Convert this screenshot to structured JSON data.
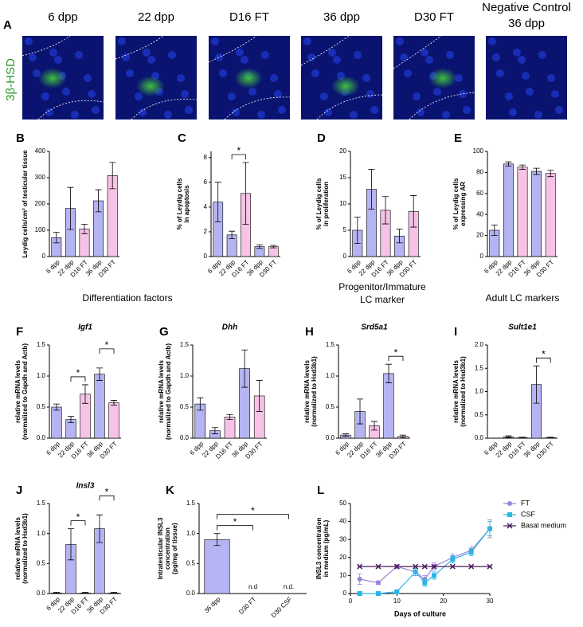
{
  "panel_a": {
    "letter": "A",
    "stain": "3β-HSD",
    "images": [
      [
        "6 dpp"
      ],
      [
        "22 dpp"
      ],
      [
        "D16 FT"
      ],
      [
        "36 dpp"
      ],
      [
        "D30 FT"
      ],
      [
        "Negative Control",
        "36 dpp"
      ]
    ]
  },
  "section_headers": [
    "Differentiation factors",
    [
      "Progenitor/Immature",
      "LC marker"
    ],
    "Adult LC markers"
  ],
  "chart_data": [
    {
      "type": "bar",
      "panel": "B",
      "ylabel": [
        "Leydig cells/cm² of testicular tissue"
      ],
      "categories": [
        "6 dpp",
        "22 dpp",
        "D16 FT",
        "36 dpp",
        "D30 FT"
      ],
      "values": [
        72,
        183,
        105,
        212,
        308
      ],
      "errors": [
        20,
        80,
        18,
        42,
        50
      ],
      "colors": [
        "#b4b4f2",
        "#b4b4f2",
        "#f6c2e6",
        "#b4b4f2",
        "#f6c2e6"
      ],
      "ylim": [
        0,
        400
      ],
      "yticks": [
        0,
        100,
        200,
        300,
        400
      ]
    },
    {
      "type": "bar",
      "panel": "C",
      "ylabel": [
        "% of Leydig cells",
        "in apoptosis"
      ],
      "categories": [
        "6 dpp",
        "22 dpp",
        "D16 FT",
        "36 dpp",
        "D30 FT"
      ],
      "values": [
        4.4,
        1.75,
        5.1,
        0.8,
        0.8
      ],
      "errors": [
        1.6,
        0.3,
        2.5,
        0.15,
        0.1
      ],
      "colors": [
        "#b4b4f2",
        "#b4b4f2",
        "#f6c2e6",
        "#b4b4f2",
        "#f6c2e6"
      ],
      "ylim": [
        0,
        8.5
      ],
      "yticks": [
        0,
        2,
        4,
        6,
        8
      ],
      "significance": [
        {
          "label": "*",
          "between": [
            "22 dpp",
            "D16 FT"
          ]
        }
      ]
    },
    {
      "type": "bar",
      "panel": "D",
      "ylabel": [
        "% of Leydig cells",
        "in proliferation"
      ],
      "categories": [
        "6 dpp",
        "22 dpp",
        "D16 FT",
        "36 dpp",
        "D30 FT"
      ],
      "values": [
        5,
        12.8,
        8.8,
        3.9,
        8.6
      ],
      "errors": [
        2.5,
        3.8,
        2.6,
        1.3,
        3
      ],
      "colors": [
        "#b4b4f2",
        "#b4b4f2",
        "#f6c2e6",
        "#b4b4f2",
        "#f6c2e6"
      ],
      "ylim": [
        0,
        20
      ],
      "yticks": [
        0,
        5,
        10,
        15,
        20
      ]
    },
    {
      "type": "bar",
      "panel": "E",
      "ylabel": [
        "% of Leydig cells",
        "expressing AR"
      ],
      "categories": [
        "6 dpp",
        "22 dpp",
        "D16 FT",
        "36 dpp",
        "D30 FT"
      ],
      "values": [
        25,
        88,
        85,
        81,
        79
      ],
      "errors": [
        5,
        2,
        2,
        3,
        3
      ],
      "colors": [
        "#b4b4f2",
        "#b4b4f2",
        "#f6c2e6",
        "#b4b4f2",
        "#f6c2e6"
      ],
      "ylim": [
        0,
        100
      ],
      "yticks": [
        0,
        20,
        40,
        60,
        80,
        100
      ]
    },
    {
      "type": "bar",
      "panel": "F",
      "title": "Igf1",
      "ylabel": [
        "relative mRNA levels",
        "(normalized to Gapdh and Actb)"
      ],
      "categories": [
        "6 dpp",
        "22 dpp",
        "D16 FT",
        "36 dpp",
        "D30 FT"
      ],
      "values": [
        0.5,
        0.3,
        0.71,
        1.03,
        0.57
      ],
      "errors": [
        0.05,
        0.05,
        0.15,
        0.1,
        0.04
      ],
      "colors": [
        "#b4b4f2",
        "#b4b4f2",
        "#f6c2e6",
        "#b4b4f2",
        "#f6c2e6"
      ],
      "ylim": [
        0,
        1.5
      ],
      "yticks": [
        {
          "value": 0,
          "label": "0.0"
        },
        {
          "value": 0.5,
          "label": "0.5"
        },
        {
          "value": 1,
          "label": "1.0"
        },
        {
          "value": 1.5,
          "label": "1.5"
        }
      ],
      "significance": [
        {
          "label": "*",
          "between": [
            "22 dpp",
            "D16 FT"
          ]
        },
        {
          "label": "*",
          "between": [
            "36 dpp",
            "D30 FT"
          ]
        }
      ]
    },
    {
      "type": "bar",
      "panel": "G",
      "title": "Dhh",
      "ylabel": [
        "relative mRNA levels",
        "(normalized to Gapdh and Actb)"
      ],
      "categories": [
        "6 dpp",
        "22 dpp",
        "D16 FT",
        "36 dpp",
        "D30 FT"
      ],
      "values": [
        0.55,
        0.12,
        0.34,
        1.12,
        0.68
      ],
      "errors": [
        0.1,
        0.05,
        0.04,
        0.3,
        0.25
      ],
      "colors": [
        "#b4b4f2",
        "#b4b4f2",
        "#f6c2e6",
        "#b4b4f2",
        "#f6c2e6"
      ],
      "ylim": [
        0,
        1.5
      ],
      "yticks": [
        {
          "value": 0,
          "label": "0.0"
        },
        {
          "value": 0.5,
          "label": "0.5"
        },
        {
          "value": 1,
          "label": "1.0"
        },
        {
          "value": 1.5,
          "label": "1.5"
        }
      ]
    },
    {
      "type": "bar",
      "panel": "H",
      "title": "Srd5a1",
      "ylabel": [
        "relative mRNA levels",
        "(normalized to Hsd3b1)"
      ],
      "categories": [
        "6 dpp",
        "22 dpp",
        "D16 FT",
        "36 dpp",
        "D30 FT"
      ],
      "values": [
        0.05,
        0.43,
        0.2,
        1.04,
        0.03
      ],
      "errors": [
        0.02,
        0.2,
        0.07,
        0.15,
        0.02
      ],
      "colors": [
        "#b4b4f2",
        "#b4b4f2",
        "#f6c2e6",
        "#b4b4f2",
        "#f6c2e6"
      ],
      "ylim": [
        0,
        1.5
      ],
      "yticks": [
        {
          "value": 0,
          "label": "0.0"
        },
        {
          "value": 0.5,
          "label": "0.5"
        },
        {
          "value": 1,
          "label": "1.0"
        },
        {
          "value": 1.5,
          "label": "1.5"
        }
      ],
      "significance": [
        {
          "label": "*",
          "between": [
            "36 dpp",
            "D30 FT"
          ]
        }
      ]
    },
    {
      "type": "bar",
      "panel": "I",
      "title": "Sult1e1",
      "ylabel": [
        "relative mRNA levels",
        "(normalized to Hsd3b1)"
      ],
      "categories": [
        "6 dpp",
        "22 dpp",
        "D16 FT",
        "36 dpp",
        "D30 FT"
      ],
      "values": [
        0,
        0.03,
        0.01,
        1.15,
        0.01
      ],
      "errors": [
        0,
        0.02,
        0.01,
        0.4,
        0.01
      ],
      "colors": [
        "#b4b4f2",
        "#b4b4f2",
        "#f6c2e6",
        "#b4b4f2",
        "#f6c2e6"
      ],
      "ylim": [
        0,
        2
      ],
      "yticks": [
        {
          "value": 0,
          "label": "0.0"
        },
        {
          "value": 0.5,
          "label": "0.5"
        },
        {
          "value": 1,
          "label": "1.0"
        },
        {
          "value": 1.5,
          "label": "1.5"
        },
        {
          "value": 2,
          "label": "2.0"
        }
      ],
      "significance": [
        {
          "label": "*",
          "between": [
            "36 dpp",
            "D30 FT"
          ]
        }
      ]
    },
    {
      "type": "bar",
      "panel": "J",
      "title": "Insl3",
      "ylabel": [
        "relative mRNA levels",
        "(normalized to Hsd3b1)"
      ],
      "categories": [
        "6 dpp",
        "22 dpp",
        "D16 FT",
        "36 dpp",
        "D30 FT"
      ],
      "values": [
        0.01,
        0.82,
        0.01,
        1.08,
        0.01
      ],
      "errors": [
        0.01,
        0.26,
        0.01,
        0.23,
        0.01
      ],
      "colors": [
        "#b4b4f2",
        "#b4b4f2",
        "#f6c2e6",
        "#b4b4f2",
        "#f6c2e6"
      ],
      "ylim": [
        0,
        1.5
      ],
      "yticks": [
        {
          "value": 0,
          "label": "0.0"
        },
        {
          "value": 0.5,
          "label": "0.5"
        },
        {
          "value": 1,
          "label": "1.0"
        },
        {
          "value": 1.5,
          "label": "1.5"
        }
      ],
      "significance": [
        {
          "label": "*",
          "between": [
            "22 dpp",
            "D16 FT"
          ]
        },
        {
          "label": "*",
          "between": [
            "36 dpp",
            "D30 FT"
          ]
        }
      ]
    },
    {
      "type": "bar",
      "panel": "K",
      "ylabel": [
        "Intratesticular INSL3",
        "concentration",
        "(pg/mg of tissue)"
      ],
      "categories": [
        "36 dpp",
        "D30 FT",
        "D30 CSF"
      ],
      "values": [
        0.9,
        null,
        null
      ],
      "errors": [
        0.1,
        null,
        null
      ],
      "value_labels": [
        null,
        "n.d",
        "n.d."
      ],
      "colors": [
        "#b4b4f2",
        "#f6c2e6",
        "#f6c2e6"
      ],
      "ylim": [
        0,
        1.5
      ],
      "yticks": [
        {
          "value": 0,
          "label": "0.0"
        },
        {
          "value": 0.5,
          "label": "0.5"
        },
        {
          "value": 1,
          "label": "1.0"
        },
        {
          "value": 1.5,
          "label": "1.5"
        }
      ],
      "significance": [
        {
          "label": "*",
          "between": [
            "36 dpp",
            "D30 FT"
          ]
        },
        {
          "label": "*",
          "between": [
            "36 dpp",
            "D30 CSF"
          ]
        }
      ]
    },
    {
      "type": "line",
      "panel": "L",
      "ylabel": [
        "INSL3 concentration",
        "in medium (pg/mL)"
      ],
      "xlabel": "Days of culture",
      "legend": "right",
      "xlim": [
        0,
        30
      ],
      "xticks": [
        0,
        10,
        20,
        30
      ],
      "ylim": [
        0,
        50
      ],
      "yticks": [
        0,
        10,
        20,
        30,
        40,
        50
      ],
      "series": [
        {
          "name": "FT",
          "color": "#9b84d6",
          "marker": "circle",
          "x": [
            2,
            6,
            10,
            14,
            16,
            18,
            22,
            26,
            30
          ],
          "values": [
            8,
            6,
            15,
            12,
            8,
            15,
            20,
            24,
            36
          ],
          "errors": [
            3,
            1,
            1,
            2,
            2,
            2,
            2,
            2,
            5
          ]
        },
        {
          "name": "CSF",
          "color": "#29b6e6",
          "marker": "square",
          "x": [
            2,
            6,
            10,
            14,
            16,
            18,
            22,
            26,
            30
          ],
          "values": [
            0,
            0,
            1,
            12,
            6,
            10,
            19,
            23,
            36
          ],
          "errors": [
            0.5,
            0.5,
            1,
            2,
            2,
            2,
            2,
            2,
            4
          ]
        },
        {
          "name": "Basal medium",
          "color": "#4b1a5a",
          "marker": "x",
          "x": [
            2,
            6,
            10,
            14,
            16,
            18,
            22,
            26,
            30
          ],
          "values": [
            15,
            15,
            15,
            15,
            15,
            15,
            15,
            15,
            15
          ],
          "errors": [
            0,
            0,
            0,
            0,
            0,
            0,
            0,
            0,
            0
          ]
        }
      ]
    }
  ]
}
